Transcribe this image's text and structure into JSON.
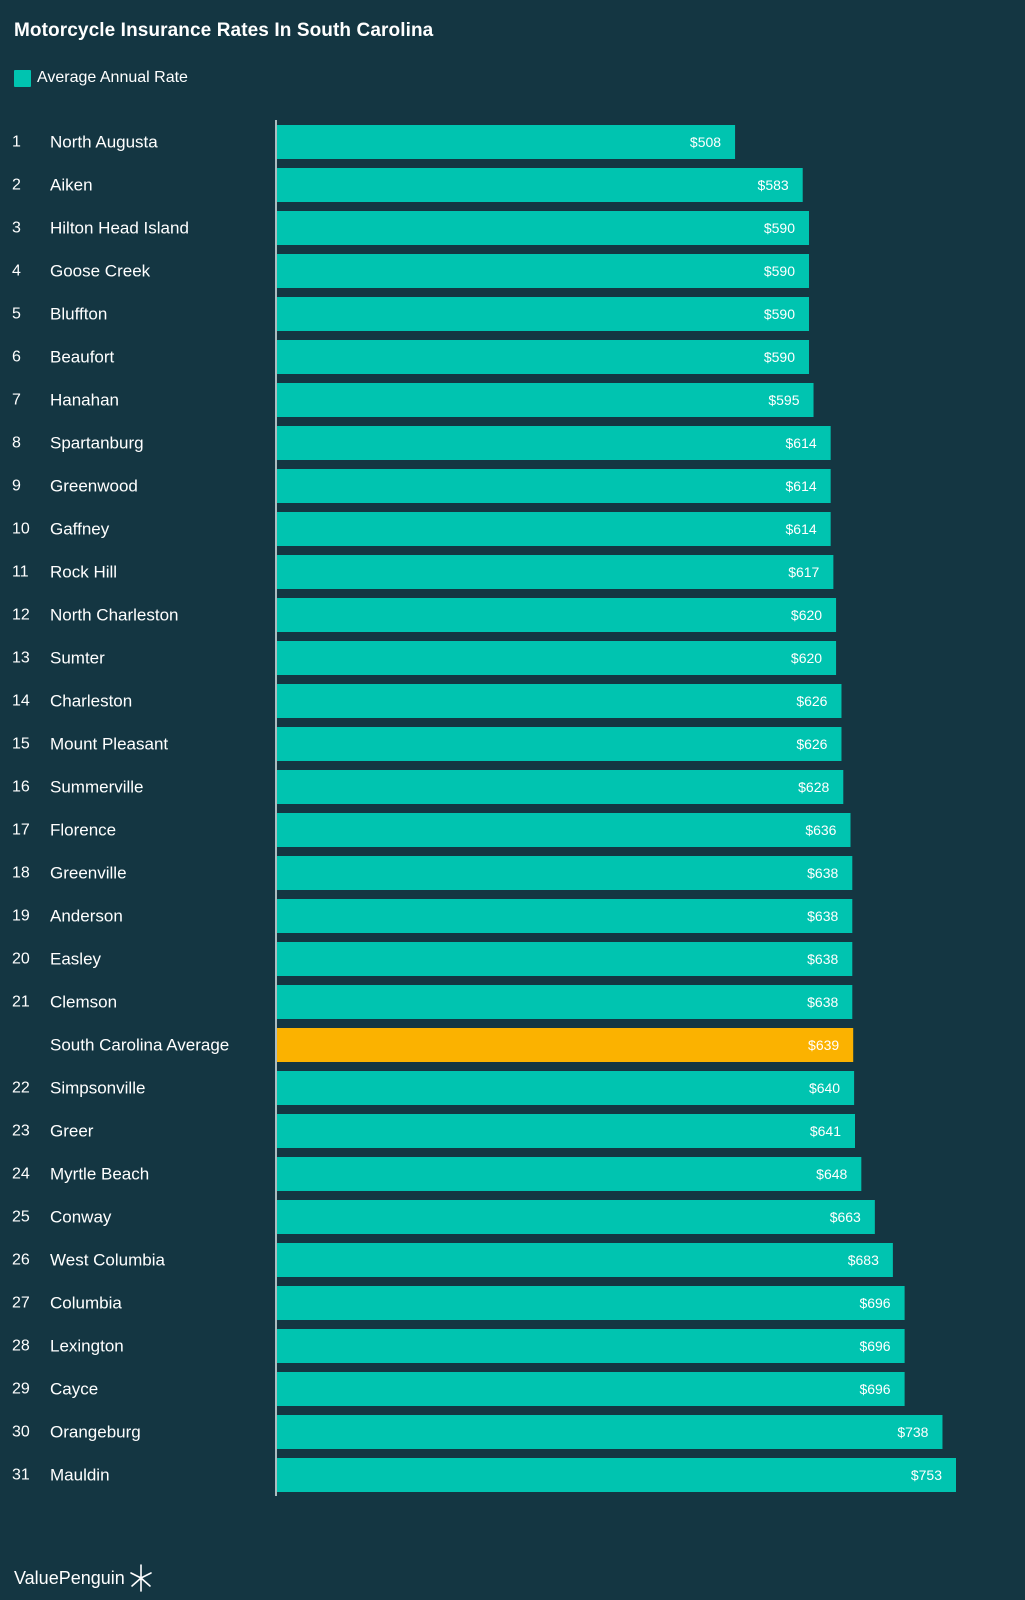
{
  "chart_data": {
    "type": "bar",
    "orientation": "horizontal",
    "title": "Motorcycle Insurance Rates In South Carolina",
    "legend": [
      {
        "label": "Average Annual Rate",
        "color": "#00c4b0"
      }
    ],
    "xlim": [
      0,
      753
    ],
    "value_prefix": "$",
    "rows": [
      {
        "rank": "1",
        "city": "North Augusta",
        "value": 508,
        "highlight": false
      },
      {
        "rank": "2",
        "city": "Aiken",
        "value": 583,
        "highlight": false
      },
      {
        "rank": "3",
        "city": "Hilton Head Island",
        "value": 590,
        "highlight": false
      },
      {
        "rank": "4",
        "city": "Goose Creek",
        "value": 590,
        "highlight": false
      },
      {
        "rank": "5",
        "city": "Bluffton",
        "value": 590,
        "highlight": false
      },
      {
        "rank": "6",
        "city": "Beaufort",
        "value": 590,
        "highlight": false
      },
      {
        "rank": "7",
        "city": "Hanahan",
        "value": 595,
        "highlight": false
      },
      {
        "rank": "8",
        "city": "Spartanburg",
        "value": 614,
        "highlight": false
      },
      {
        "rank": "9",
        "city": "Greenwood",
        "value": 614,
        "highlight": false
      },
      {
        "rank": "10",
        "city": "Gaffney",
        "value": 614,
        "highlight": false
      },
      {
        "rank": "11",
        "city": "Rock Hill",
        "value": 617,
        "highlight": false
      },
      {
        "rank": "12",
        "city": "North Charleston",
        "value": 620,
        "highlight": false
      },
      {
        "rank": "13",
        "city": "Sumter",
        "value": 620,
        "highlight": false
      },
      {
        "rank": "14",
        "city": "Charleston",
        "value": 626,
        "highlight": false
      },
      {
        "rank": "15",
        "city": "Mount Pleasant",
        "value": 626,
        "highlight": false
      },
      {
        "rank": "16",
        "city": "Summerville",
        "value": 628,
        "highlight": false
      },
      {
        "rank": "17",
        "city": "Florence",
        "value": 636,
        "highlight": false
      },
      {
        "rank": "18",
        "city": "Greenville",
        "value": 638,
        "highlight": false
      },
      {
        "rank": "19",
        "city": "Anderson",
        "value": 638,
        "highlight": false
      },
      {
        "rank": "20",
        "city": "Easley",
        "value": 638,
        "highlight": false
      },
      {
        "rank": "21",
        "city": "Clemson",
        "value": 638,
        "highlight": false
      },
      {
        "rank": "",
        "city": "South Carolina Average",
        "value": 639,
        "highlight": true
      },
      {
        "rank": "22",
        "city": "Simpsonville",
        "value": 640,
        "highlight": false
      },
      {
        "rank": "23",
        "city": "Greer",
        "value": 641,
        "highlight": false
      },
      {
        "rank": "24",
        "city": "Myrtle Beach",
        "value": 648,
        "highlight": false
      },
      {
        "rank": "25",
        "city": "Conway",
        "value": 663,
        "highlight": false
      },
      {
        "rank": "26",
        "city": "West Columbia",
        "value": 683,
        "highlight": false
      },
      {
        "rank": "27",
        "city": "Columbia",
        "value": 696,
        "highlight": false
      },
      {
        "rank": "28",
        "city": "Lexington",
        "value": 696,
        "highlight": false
      },
      {
        "rank": "29",
        "city": "Cayce",
        "value": 696,
        "highlight": false
      },
      {
        "rank": "30",
        "city": "Orangeburg",
        "value": 738,
        "highlight": false
      },
      {
        "rank": "31",
        "city": "Mauldin",
        "value": 753,
        "highlight": false
      }
    ]
  },
  "colors": {
    "background": "#143642",
    "bar": "#00c4b0",
    "highlight_bar": "#fbb200",
    "text": "#ffffff",
    "axis": "#dfe8ea"
  },
  "footer": {
    "brand": "ValuePenguin",
    "logo_icon": "valuepenguin-logo-icon"
  }
}
